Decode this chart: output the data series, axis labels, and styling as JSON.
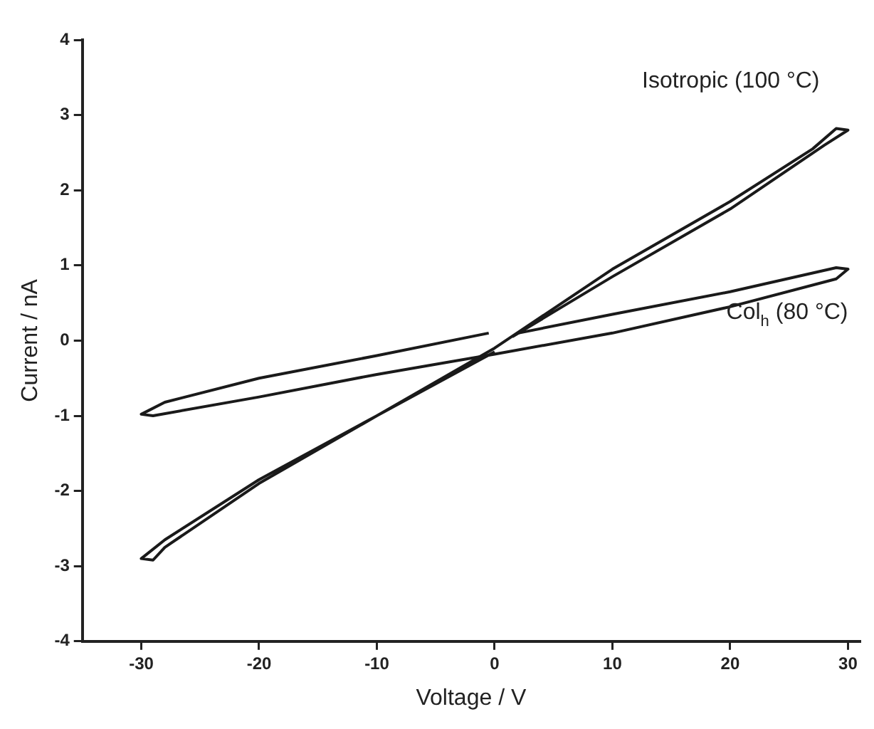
{
  "chart_data": {
    "type": "line",
    "xlabel": "Voltage / V",
    "ylabel": "Current / nA",
    "xlim": [
      -35,
      31
    ],
    "ylim": [
      -4,
      4
    ],
    "xticks": [
      -30,
      -20,
      -10,
      0,
      10,
      20,
      30
    ],
    "yticks": [
      -4,
      -3,
      -2,
      -1,
      0,
      1,
      2,
      3,
      4
    ],
    "grid": false,
    "legend": false,
    "marker": "none",
    "line_style": "solid",
    "series": [
      {
        "name": "Isotropic (100 °C)",
        "color": "#1a1a1a",
        "x": [
          1.5,
          10,
          20,
          28,
          30,
          29,
          27,
          20,
          10,
          0,
          -10,
          -20,
          -28,
          -30,
          -29,
          -28,
          -20,
          -10,
          0
        ],
        "values": [
          0.05,
          0.85,
          1.75,
          2.6,
          2.8,
          2.82,
          2.55,
          1.85,
          0.95,
          -0.1,
          -1.0,
          -1.85,
          -2.65,
          -2.9,
          -2.92,
          -2.75,
          -1.9,
          -1.0,
          -0.15
        ]
      },
      {
        "name": "Col$_{h}$ (80 °C)",
        "color": "#1a1a1a",
        "x": [
          -0.5,
          -10,
          -20,
          -28,
          -30,
          -29,
          -20,
          -10,
          0,
          10,
          20,
          29,
          30,
          29,
          20,
          10,
          2
        ],
        "values": [
          0.1,
          -0.2,
          -0.5,
          -0.82,
          -0.98,
          -1.0,
          -0.75,
          -0.45,
          -0.18,
          0.1,
          0.45,
          0.82,
          0.95,
          0.97,
          0.65,
          0.35,
          0.1
        ]
      }
    ]
  }
}
